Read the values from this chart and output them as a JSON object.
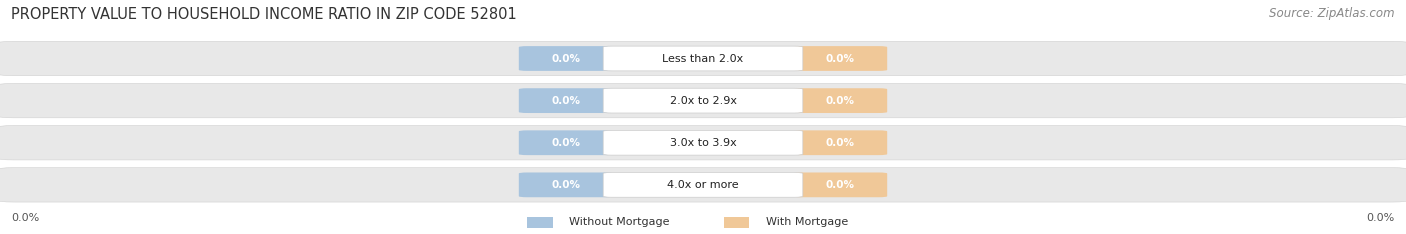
{
  "title": "PROPERTY VALUE TO HOUSEHOLD INCOME RATIO IN ZIP CODE 52801",
  "source": "Source: ZipAtlas.com",
  "categories": [
    "Less than 2.0x",
    "2.0x to 2.9x",
    "3.0x to 3.9x",
    "4.0x or more"
  ],
  "without_mortgage": [
    0.0,
    0.0,
    0.0,
    0.0
  ],
  "with_mortgage": [
    0.0,
    0.0,
    0.0,
    0.0
  ],
  "bar_color_without": "#a8c4de",
  "bar_color_with": "#f0c898",
  "bg_color": "#ffffff",
  "bar_bg_color": "#e8e8e8",
  "title_fontsize": 10.5,
  "source_fontsize": 8.5,
  "x_left_label": "0.0%",
  "x_right_label": "0.0%",
  "legend_without": "Without Mortgage",
  "legend_with": "With Mortgage"
}
